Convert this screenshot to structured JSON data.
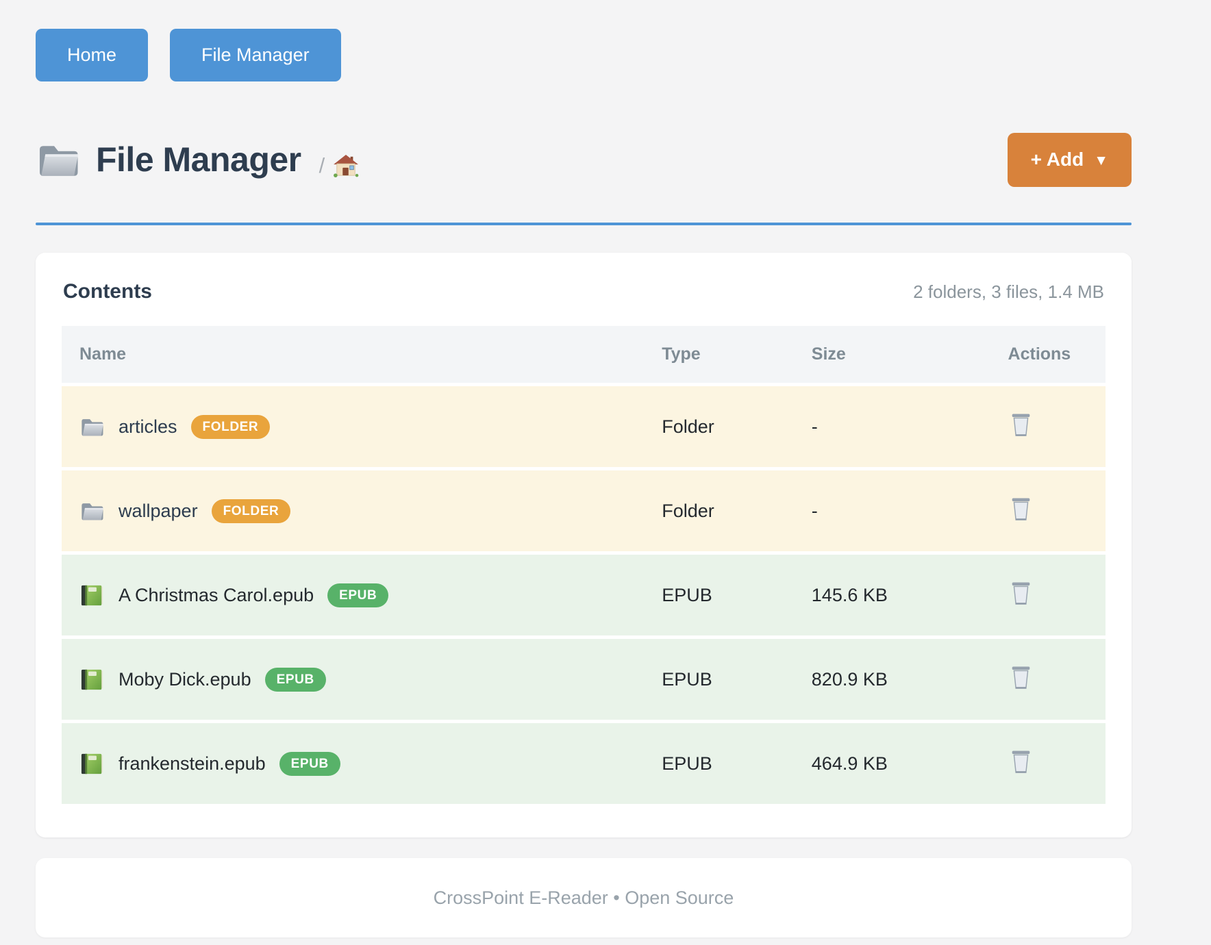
{
  "colors": {
    "page_bg": "#f4f4f5",
    "accent_blue": "#4e94d6",
    "accent_orange": "#d8823b",
    "folder_badge": "#e9a43c",
    "epub_badge": "#58b269",
    "folder_row_bg": "#fcf5e1",
    "epub_row_bg": "#e9f3e9",
    "heading_text": "#2e3d4f",
    "muted_text": "#8b959c"
  },
  "nav": {
    "items": [
      {
        "label": "Home"
      },
      {
        "label": "File Manager"
      }
    ]
  },
  "header": {
    "title_icon": "folder-icon",
    "title": "File Manager",
    "breadcrumb_separator": "/",
    "breadcrumb_home_icon": "house-icon",
    "add_button": {
      "label": "+ Add",
      "caret": "▼"
    }
  },
  "contents": {
    "heading": "Contents",
    "summary": "2 folders, 3 files, 1.4 MB",
    "columns": {
      "name": "Name",
      "type": "Type",
      "size": "Size",
      "actions": "Actions"
    },
    "rows": [
      {
        "name": "articles",
        "kind": "folder",
        "icon": "folder-icon",
        "badge": "FOLDER",
        "type": "Folder",
        "size": "-",
        "action_icon": "trash-icon"
      },
      {
        "name": "wallpaper",
        "kind": "folder",
        "icon": "folder-icon",
        "badge": "FOLDER",
        "type": "Folder",
        "size": "-",
        "action_icon": "trash-icon"
      },
      {
        "name": "A Christmas Carol.epub",
        "kind": "epub",
        "icon": "book-icon",
        "badge": "EPUB",
        "type": "EPUB",
        "size": "145.6 KB",
        "action_icon": "trash-icon"
      },
      {
        "name": "Moby Dick.epub",
        "kind": "epub",
        "icon": "book-icon",
        "badge": "EPUB",
        "type": "EPUB",
        "size": "820.9 KB",
        "action_icon": "trash-icon"
      },
      {
        "name": "frankenstein.epub",
        "kind": "epub",
        "icon": "book-icon",
        "badge": "EPUB",
        "type": "EPUB",
        "size": "464.9 KB",
        "action_icon": "trash-icon"
      }
    ]
  },
  "footer": {
    "text": "CrossPoint E-Reader • Open Source"
  }
}
